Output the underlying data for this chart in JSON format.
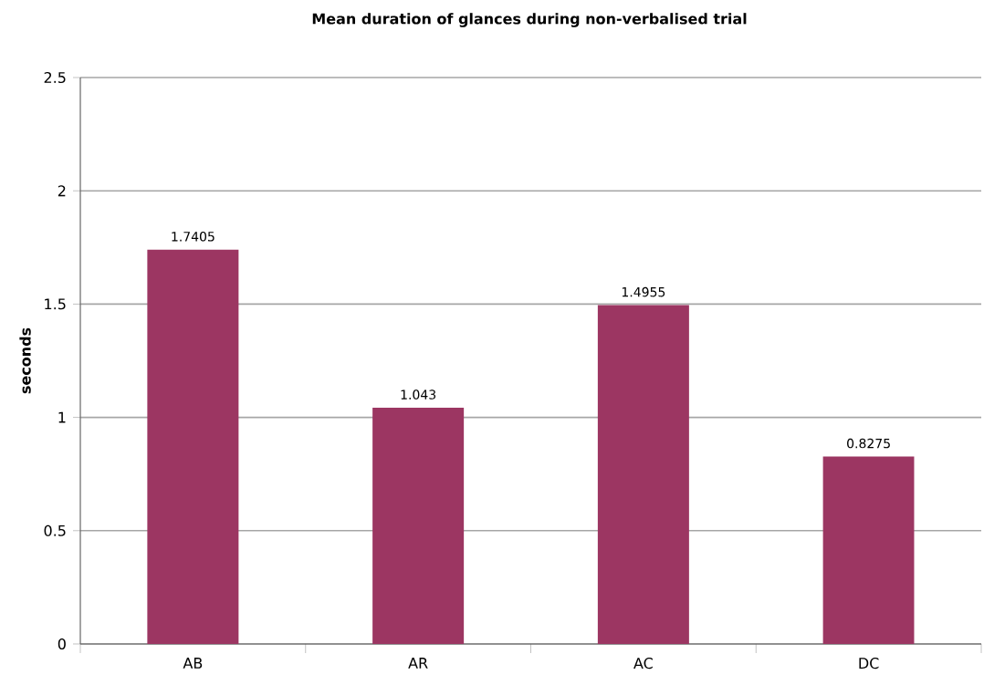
{
  "chart_data": {
    "type": "bar",
    "title": "Mean duration of glances during non-verbalised trial",
    "ylabel": "seconds",
    "categories": [
      "AB",
      "AR",
      "AC",
      "DC"
    ],
    "values": [
      1.7405,
      1.043,
      1.4955,
      0.8275
    ],
    "value_labels": [
      "1.7405",
      "1.043",
      "1.4955",
      "0.8275"
    ],
    "color": "#9c3662",
    "ylim": [
      0,
      2.5
    ],
    "yticks": [
      0,
      0.5,
      1,
      1.5,
      2,
      2.5
    ],
    "grid": "y"
  }
}
